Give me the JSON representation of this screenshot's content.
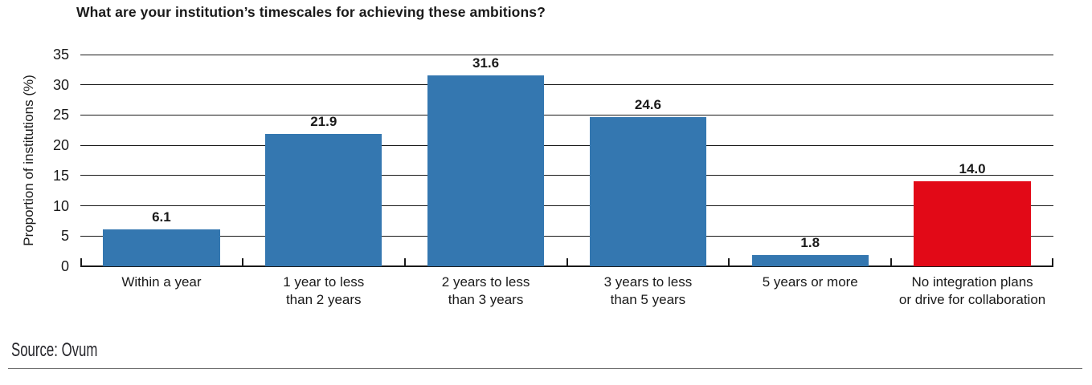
{
  "title": "What are your institution’s timescales for achieving these ambitions?",
  "source": "Source: Ovum",
  "colors": {
    "bar_blue": "#3477b0",
    "bar_red": "#e20917",
    "grid": "#1a1a1a",
    "text": "#1a1a1a",
    "rule_gray": "#6e6e6e"
  },
  "chart_data": {
    "type": "bar",
    "title": "What are your institution’s timescales for achieving these ambitions?",
    "categories": [
      "Within a year",
      "1 year to less\nthan 2 years",
      "2 years to less\nthan 3 years",
      "3 years to less\nthan 5 years",
      "5 years or more",
      "No integration plans\nor drive for collaboration"
    ],
    "values": [
      6.1,
      21.9,
      31.6,
      24.6,
      1.8,
      14.0
    ],
    "bar_colors": [
      "#3477b0",
      "#3477b0",
      "#3477b0",
      "#3477b0",
      "#3477b0",
      "#e20917"
    ],
    "xlabel": "",
    "ylabel": "Proportion of institutions (%)",
    "ylim": [
      0,
      35
    ],
    "yticks": [
      0,
      5,
      10,
      15,
      20,
      25,
      30,
      35
    ],
    "grid": true,
    "legend": false,
    "value_label_format": "one_decimal",
    "highlight_index": 5,
    "source": "Source: Ovum"
  }
}
